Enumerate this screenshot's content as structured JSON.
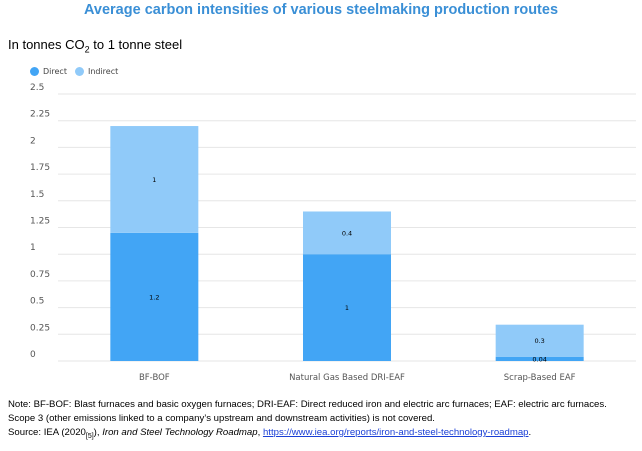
{
  "title": "Average carbon intensities of various steelmaking production routes",
  "subtitle_pre": "In tonnes CO",
  "subtitle_sub": "2",
  "subtitle_post": " to 1 tonne steel",
  "colors": {
    "direct": "#42a5f5",
    "indirect": "#90caf9",
    "title": "#3a8fd6",
    "grid": "#e6e6e6"
  },
  "chart_data": {
    "type": "bar",
    "stacked": true,
    "categories": [
      "BF-BOF",
      "Natural Gas Based DRI-EAF",
      "Scrap-Based EAF"
    ],
    "series": [
      {
        "name": "Direct",
        "values": [
          1.2,
          1,
          0.04
        ],
        "labels": [
          "1.2",
          "1",
          "0.04"
        ]
      },
      {
        "name": "Indirect",
        "values": [
          1,
          0.4,
          0.3
        ],
        "labels": [
          "1",
          "0.4",
          "0.3"
        ]
      }
    ],
    "yticks": [
      "0",
      "0.25",
      "0.5",
      "0.75",
      "1",
      "1.25",
      "1.5",
      "1.75",
      "2",
      "2.25",
      "2.5"
    ],
    "ylim": [
      0,
      2.5
    ],
    "grid": true,
    "legend": "top-left"
  },
  "note": {
    "line1": "Note: BF-BOF: Blast furnaces and basic oxygen furnaces; DRI-EAF: Direct reduced iron and electric arc furnaces; EAF: electric arc furnaces.",
    "line2": "Scope 3 (other emissions linked to a company’s upstream and downstream activities) is not covered.",
    "source_pre": "Source: IEA (2020",
    "source_ref": "[5]",
    "source_mid": "), ",
    "source_title": "Iron and Steel Technology Roadmap",
    "source_sep": ", ",
    "source_url": "https://www.iea.org/reports/iron-and-steel-technology-roadmap",
    "source_end": "."
  }
}
